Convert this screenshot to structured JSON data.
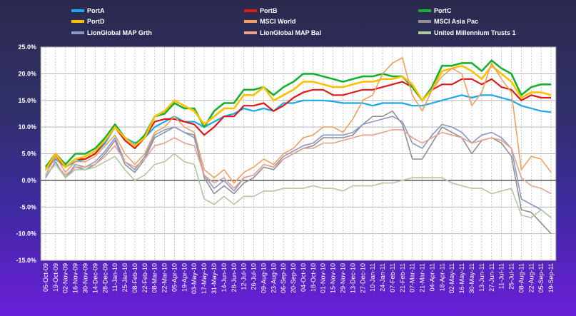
{
  "chart_data": {
    "type": "line",
    "title": "",
    "xlabel": "",
    "ylabel": "",
    "ylim": [
      -15,
      25
    ],
    "ytick_labels": [
      "25.0%",
      "20.0%",
      "15.0%",
      "10.0%",
      "5.0%",
      "0.0%",
      "-5.0%",
      "-10.0%",
      "-15.0%"
    ],
    "grid": true,
    "legend_position": "top",
    "colors": {
      "plot_background": "#ffffff",
      "grid": "#b8b8b8",
      "zero_line": "#000000",
      "text": "#ffffff"
    },
    "x": [
      "05-Oct-09",
      "19-Oct-09",
      "02-Nov-09",
      "16-Nov-09",
      "30-Nov-09",
      "14-Dec-09",
      "28-Dec-09",
      "11-Jan-10",
      "25-Jan-10",
      "08-Feb-10",
      "22-Feb-10",
      "08-Mar-10",
      "22-Mar-10",
      "05-Apr-10",
      "19-Apr-10",
      "03-May-10",
      "17-May-10",
      "31-May-10",
      "14-Jun-10",
      "28-Jun-10",
      "12-Jul-10",
      "26-Jul-10",
      "09-Aug-10",
      "23-Aug-10",
      "06-Sep-10",
      "20-Sep-10",
      "04-Oct-10",
      "18-Oct-10",
      "01-Nov-10",
      "15-Nov-10",
      "29-Nov-10",
      "13-Dec-10",
      "27-Dec-10",
      "10-Jan-11",
      "24-Jan-11",
      "07-Feb-11",
      "21-Feb-11",
      "07-Mar-11",
      "21-Mar-11",
      "04-Apr-11",
      "18-Apr-11",
      "02-May-11",
      "16-May-11",
      "30-May-11",
      "13-Jun-11",
      "27-Jun-11",
      "11-Jul-11",
      "25-Jul-11",
      "08-Aug-11",
      "22-Aug-11",
      "05-Sep-11",
      "19-Sep-11"
    ],
    "series": [
      {
        "name": "PortA",
        "color": "#1ea8e8",
        "width": 2.2,
        "values": [
          2.0,
          4.0,
          2.5,
          3.5,
          4.0,
          5.0,
          7.0,
          10.0,
          8.0,
          7.0,
          8.0,
          10.0,
          11.0,
          12.0,
          11.0,
          11.0,
          10.0,
          11.0,
          12.0,
          12.5,
          13.5,
          13.0,
          13.5,
          13.0,
          14.5,
          14.5,
          15.0,
          15.0,
          15.0,
          14.8,
          14.5,
          14.5,
          14.5,
          14.0,
          14.5,
          14.5,
          14.5,
          14.0,
          14.0,
          14.5,
          15.0,
          15.5,
          16.0,
          15.5,
          16.0,
          16.0,
          15.5,
          15.0,
          14.0,
          13.5,
          13.0,
          12.8
        ]
      },
      {
        "name": "PortB",
        "color": "#e01818",
        "width": 2.2,
        "values": [
          2.0,
          4.5,
          2.5,
          4.0,
          4.0,
          5.0,
          7.5,
          10.0,
          7.5,
          6.0,
          8.0,
          11.0,
          11.5,
          11.5,
          11.0,
          10.5,
          8.5,
          10.0,
          12.0,
          12.0,
          14.0,
          14.0,
          14.5,
          13.0,
          14.0,
          15.5,
          16.5,
          17.0,
          17.0,
          16.0,
          16.0,
          16.5,
          17.0,
          17.0,
          17.5,
          18.0,
          18.5,
          17.5,
          15.0,
          17.0,
          18.0,
          18.0,
          19.0,
          19.0,
          18.0,
          19.0,
          17.5,
          17.0,
          15.0,
          16.0,
          15.5,
          15.5
        ]
      },
      {
        "name": "PortC",
        "color": "#18b030",
        "width": 2.6,
        "values": [
          2.5,
          5.0,
          3.0,
          5.0,
          5.0,
          6.0,
          8.0,
          10.5,
          8.0,
          6.5,
          8.5,
          12.0,
          12.5,
          14.5,
          13.5,
          13.5,
          10.0,
          13.0,
          14.5,
          14.5,
          17.0,
          17.0,
          17.5,
          16.0,
          17.5,
          18.5,
          20.0,
          20.0,
          19.5,
          19.0,
          18.5,
          19.0,
          19.5,
          19.5,
          20.0,
          19.5,
          19.5,
          17.5,
          15.0,
          17.5,
          21.5,
          21.5,
          22.0,
          22.0,
          20.5,
          22.5,
          21.0,
          20.0,
          16.0,
          17.5,
          18.0,
          18.0
        ]
      },
      {
        "name": "PortD",
        "color": "#ffc000",
        "width": 2.6,
        "values": [
          2.0,
          5.0,
          2.5,
          4.0,
          4.5,
          5.5,
          7.5,
          10.0,
          8.0,
          6.5,
          8.0,
          12.0,
          13.0,
          15.0,
          14.0,
          13.0,
          10.5,
          12.0,
          13.5,
          13.5,
          16.0,
          16.0,
          17.5,
          15.0,
          16.0,
          17.0,
          18.5,
          18.5,
          18.0,
          17.5,
          17.5,
          18.0,
          18.5,
          18.5,
          19.0,
          19.0,
          19.5,
          18.0,
          15.0,
          17.0,
          20.5,
          21.0,
          21.5,
          20.5,
          19.0,
          21.5,
          20.0,
          18.5,
          15.5,
          16.5,
          16.5,
          16.0
        ]
      },
      {
        "name": "MSCI World",
        "color": "#f0a060",
        "width": 1.6,
        "values": [
          1.0,
          4.5,
          1.5,
          3.5,
          3.5,
          4.5,
          6.5,
          8.5,
          5.0,
          3.0,
          5.0,
          9.0,
          10.0,
          12.0,
          10.0,
          9.0,
          2.0,
          0.5,
          2.0,
          -0.5,
          1.5,
          2.5,
          4.0,
          3.0,
          5.0,
          6.0,
          8.0,
          8.5,
          10.0,
          10.0,
          9.0,
          11.5,
          15.0,
          16.0,
          20.0,
          22.0,
          23.0,
          16.0,
          13.0,
          17.0,
          19.5,
          21.0,
          20.0,
          14.0,
          16.5,
          22.0,
          19.0,
          16.5,
          2.0,
          4.5,
          4.0,
          1.5
        ]
      },
      {
        "name": "MSCI Asia Pac",
        "color": "#909090",
        "width": 1.6,
        "values": [
          0.5,
          3.5,
          0.5,
          2.5,
          2.0,
          3.0,
          5.0,
          7.5,
          3.0,
          1.5,
          4.0,
          8.0,
          9.0,
          10.0,
          9.0,
          8.5,
          0.5,
          -2.5,
          -1.0,
          -2.5,
          -0.5,
          0.5,
          2.5,
          2.0,
          4.0,
          5.0,
          6.0,
          6.5,
          8.0,
          8.0,
          8.0,
          8.5,
          10.5,
          12.0,
          12.0,
          13.0,
          10.5,
          4.0,
          4.0,
          7.0,
          10.0,
          9.0,
          8.0,
          5.0,
          7.5,
          8.0,
          7.0,
          4.5,
          -5.5,
          -6.0,
          -8.0,
          -10.0
        ]
      },
      {
        "name": "LionGlobal MAP Grth",
        "color": "#8898c8",
        "width": 1.6,
        "values": [
          0.5,
          3.5,
          0.5,
          3.0,
          2.5,
          3.5,
          5.5,
          8.0,
          3.5,
          2.0,
          4.5,
          8.5,
          9.5,
          10.0,
          9.0,
          8.0,
          1.0,
          -1.5,
          0.0,
          -2.0,
          0.5,
          1.0,
          3.0,
          2.5,
          4.5,
          5.5,
          6.5,
          7.0,
          8.5,
          8.5,
          8.5,
          9.0,
          10.5,
          11.0,
          11.5,
          12.0,
          11.0,
          7.0,
          6.0,
          8.5,
          10.5,
          10.0,
          9.0,
          7.0,
          8.5,
          9.0,
          8.0,
          6.0,
          -3.5,
          -4.5,
          -5.5,
          -7.0
        ]
      },
      {
        "name": "LionGlobal MAP Bal",
        "color": "#e8a090",
        "width": 1.6,
        "values": [
          1.0,
          3.0,
          1.0,
          2.5,
          2.5,
          3.0,
          4.5,
          6.5,
          3.5,
          2.5,
          4.0,
          6.5,
          7.0,
          8.0,
          7.0,
          6.5,
          1.0,
          -0.5,
          0.5,
          -1.5,
          0.5,
          1.0,
          3.0,
          2.5,
          4.0,
          5.0,
          6.0,
          6.0,
          7.0,
          7.0,
          7.5,
          8.0,
          8.5,
          8.5,
          9.0,
          9.5,
          9.5,
          8.0,
          7.0,
          8.0,
          9.0,
          8.5,
          8.0,
          7.0,
          7.5,
          8.0,
          7.5,
          6.0,
          0.5,
          -1.0,
          -1.5,
          -2.5
        ]
      },
      {
        "name": "United Millennium Trusts 1",
        "color": "#b0c8a0",
        "width": 1.6,
        "values": [
          1.0,
          3.0,
          0.5,
          2.0,
          2.0,
          2.5,
          3.5,
          4.5,
          2.0,
          0.0,
          1.0,
          3.0,
          3.5,
          5.0,
          3.5,
          3.0,
          -3.5,
          -4.5,
          -3.0,
          -4.5,
          -3.0,
          -3.0,
          -2.0,
          -2.0,
          -1.5,
          -1.5,
          -1.5,
          -1.0,
          -1.5,
          -1.5,
          -2.0,
          -1.0,
          -1.0,
          -1.0,
          -0.5,
          -0.5,
          0.0,
          0.5,
          0.5,
          0.5,
          0.5,
          -0.5,
          -1.0,
          -1.5,
          -1.5,
          -2.5,
          -2.0,
          -1.5,
          -6.5,
          -7.0,
          -5.5,
          -7.0
        ]
      }
    ]
  }
}
